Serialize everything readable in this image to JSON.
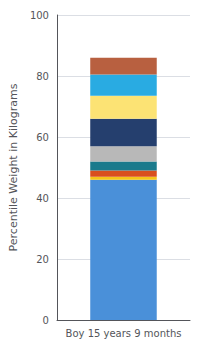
{
  "chart_data": {
    "type": "bar",
    "stacked": true,
    "categories": [
      "Boy 15 years 9 months"
    ],
    "series": [
      {
        "color": "#4a90d9",
        "values": [
          46.0
        ]
      },
      {
        "color": "#f5c518",
        "values": [
          1.0
        ]
      },
      {
        "color": "#d94f1e",
        "values": [
          2.0
        ]
      },
      {
        "color": "#1a7a8c",
        "values": [
          3.0
        ]
      },
      {
        "color": "#b8b8b8",
        "values": [
          5.0
        ]
      },
      {
        "color": "#253f6e",
        "values": [
          9.0
        ]
      },
      {
        "color": "#fce374",
        "values": [
          7.5
        ]
      },
      {
        "color": "#29abe2",
        "values": [
          7.0
        ]
      },
      {
        "color": "#b86040",
        "values": [
          5.5
        ]
      }
    ],
    "ylabel": "Percentile Weight in Kilograms",
    "ylim": [
      0,
      100
    ],
    "yticks": [
      0,
      20,
      40,
      60,
      80,
      100
    ],
    "grid": true
  }
}
